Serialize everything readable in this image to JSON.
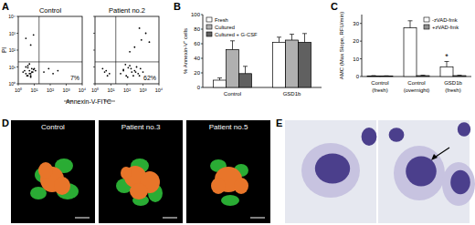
{
  "chart_data": [
    {
      "type": "scatter",
      "panel": "A",
      "title": "Control",
      "x_label": "Annexin-V-FITC",
      "y_label": "PI",
      "log": true,
      "xlim": [
        1,
        10000
      ],
      "ylim": [
        1,
        10000
      ],
      "xticks": [
        {
          "value": 1,
          "label": "10⁰"
        },
        {
          "value": 10,
          "label": "10¹"
        },
        {
          "value": 100,
          "label": "10²"
        },
        {
          "value": 1000,
          "label": "10³"
        },
        {
          "value": 10000,
          "label": "10⁴"
        }
      ],
      "yticks": [
        {
          "value": 1,
          "label": "10⁰"
        },
        {
          "value": 10,
          "label": "10¹"
        },
        {
          "value": 100,
          "label": "10²"
        },
        {
          "value": 1000,
          "label": "10³"
        },
        {
          "value": 10000,
          "label": "10⁴"
        }
      ],
      "annotation": "7%",
      "quadrant_x": 20,
      "quadrant_y": 20,
      "color": "#000000",
      "x": [
        3,
        5,
        4,
        7,
        2,
        6,
        9,
        3,
        5,
        8,
        4,
        6,
        2.5,
        10,
        5,
        7,
        3.5,
        12,
        4,
        6,
        40,
        80,
        150,
        300,
        6,
        9,
        3
      ],
      "y": [
        4,
        6,
        3,
        8,
        5,
        2.5,
        7,
        10,
        4,
        5,
        12,
        3,
        6,
        8,
        15,
        5,
        3,
        6,
        9,
        4,
        5,
        8,
        4,
        6,
        200,
        800,
        500
      ]
    },
    {
      "type": "scatter",
      "title": "Patient no.2",
      "log": true,
      "xlim": [
        1,
        10000
      ],
      "ylim": [
        1,
        10000
      ],
      "xticks": [
        {
          "value": 1,
          "label": "10⁰"
        },
        {
          "value": 10,
          "label": "10¹"
        },
        {
          "value": 100,
          "label": "10²"
        },
        {
          "value": 1000,
          "label": "10³"
        },
        {
          "value": 10000,
          "label": "10⁴"
        }
      ],
      "yticks": [
        {
          "value": 1,
          "label": "10⁰"
        },
        {
          "value": 10,
          "label": "10¹"
        },
        {
          "value": 100,
          "label": "10²"
        },
        {
          "value": 1000,
          "label": "10³"
        },
        {
          "value": 10000,
          "label": "10⁴"
        }
      ],
      "annotation": "62%",
      "quadrant_x": 20,
      "quadrant_y": 20,
      "color": "#000000",
      "x": [
        4,
        6,
        3,
        8,
        5,
        40,
        60,
        90,
        120,
        200,
        300,
        500,
        700,
        1000,
        150,
        80,
        250,
        400,
        60,
        110,
        180,
        350,
        600,
        300,
        800,
        1500,
        2500,
        600,
        150
      ],
      "y": [
        5,
        3,
        8,
        4,
        6,
        4,
        7,
        3,
        9,
        5,
        6,
        4,
        8,
        5,
        12,
        14,
        3,
        10,
        6,
        2.5,
        8,
        5,
        3,
        150,
        400,
        1000,
        300,
        2000,
        80
      ]
    },
    {
      "type": "bar",
      "panel": "B",
      "y_label": "% Annexin-V⁺ cells",
      "categories": [
        "Control",
        "GSD1b"
      ],
      "ylim": [
        0,
        100
      ],
      "yticks": [
        0,
        20,
        40,
        60,
        80,
        100
      ],
      "legend": "top-left",
      "series": [
        {
          "name": "Fresh",
          "color": "#ffffff",
          "values": [
            10,
            62
          ],
          "errors": [
            3,
            7
          ]
        },
        {
          "name": "Cultured",
          "color": "#b0b0b0",
          "values": [
            52,
            65
          ],
          "errors": [
            12,
            8
          ]
        },
        {
          "name": "Cultured + G-CSF",
          "color": "#606060",
          "values": [
            19,
            62
          ],
          "errors": [
            10,
            12
          ]
        }
      ]
    },
    {
      "type": "bar",
      "panel": "C",
      "y_label": "AMC (Max Slope, RFU/min)",
      "categories": [
        "Control (fresh)",
        "Control (overnight)",
        "GSD1b (fresh)"
      ],
      "ylim": [
        0,
        35
      ],
      "yticks": [
        0,
        10,
        20,
        30
      ],
      "legend": "top-right",
      "annotation": "*",
      "annotation_category": 2,
      "series": [
        {
          "name": "-zVAD-fmk",
          "color": "#ffffff",
          "values": [
            0.3,
            27.5,
            5.5
          ],
          "errors": [
            0.2,
            4,
            3
          ]
        },
        {
          "name": "+zVAD-fmk",
          "color": "#909090",
          "values": [
            0.3,
            0.5,
            0.5
          ],
          "errors": [
            0.1,
            0.2,
            0.2
          ]
        }
      ]
    }
  ],
  "figure": {
    "D": {
      "label": "D",
      "captions": [
        "Control",
        "Patient no.3",
        "Patient no.5"
      ]
    },
    "E": {
      "label": "E"
    }
  }
}
